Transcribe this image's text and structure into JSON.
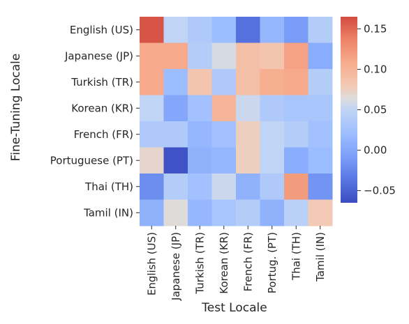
{
  "chart_data": {
    "type": "heatmap",
    "xlabel": "Test Locale",
    "ylabel": "Fine-Tuning Locale",
    "x_categories": [
      "English (US)",
      "Japanese (JP)",
      "Turkish (TR)",
      "Korean (KR)",
      "French (FR)",
      "Portug. (PT)",
      "Thai (TH)",
      "Tamil (IN)"
    ],
    "y_categories": [
      "English (US)",
      "Japanese (JP)",
      "Turkish (TR)",
      "Korean (KR)",
      "French (FR)",
      "Portuguese (PT)",
      "Thai (TH)",
      "Tamil (IN)"
    ],
    "values": [
      [
        0.16,
        0.05,
        0.035,
        0.02,
        -0.04,
        0.015,
        -0.01,
        0.04
      ],
      [
        0.11,
        0.11,
        0.04,
        0.06,
        0.09,
        0.085,
        0.115,
        0.005
      ],
      [
        0.11,
        0.02,
        0.085,
        0.035,
        0.09,
        0.105,
        0.11,
        0.04
      ],
      [
        0.05,
        0.0,
        0.025,
        0.1,
        0.055,
        0.035,
        0.03,
        0.03
      ],
      [
        0.035,
        0.035,
        0.015,
        0.025,
        0.075,
        0.05,
        0.04,
        0.025
      ],
      [
        0.07,
        -0.06,
        0.01,
        0.015,
        0.075,
        0.05,
        0.005,
        0.02
      ],
      [
        -0.02,
        0.04,
        0.025,
        0.055,
        0.01,
        0.035,
        0.12,
        -0.015
      ],
      [
        0.01,
        0.065,
        0.015,
        0.03,
        0.04,
        0.01,
        0.045,
        0.08
      ]
    ],
    "colorbar": {
      "colormap": "coolwarm",
      "vmin": -0.065,
      "vmax": 0.165,
      "ticks": [
        -0.05,
        0.0,
        0.05,
        0.1,
        0.15
      ],
      "tick_labels": [
        "−0.05",
        "0.00",
        "0.05",
        "0.10",
        "0.15"
      ]
    }
  }
}
